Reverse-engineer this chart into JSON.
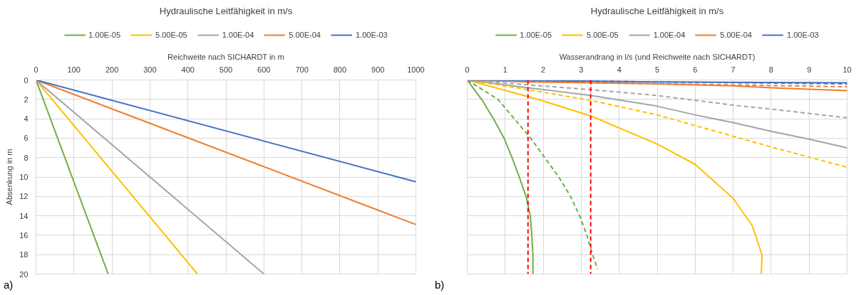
{
  "chart_data": [
    {
      "type": "line",
      "legend_title": "Hydraulische Leitfähigkeit in m/s",
      "xlabel": "Reichweite nach SICHARDT in m",
      "ylabel": "Absenkung in m",
      "xlim": [
        0,
        1000
      ],
      "xticks": [
        0,
        100,
        200,
        300,
        400,
        500,
        600,
        700,
        800,
        900,
        1000
      ],
      "ylim": [
        20,
        0
      ],
      "yticks": [
        0,
        2,
        4,
        6,
        8,
        10,
        12,
        14,
        16,
        18,
        20
      ],
      "grid": true,
      "legend": "top",
      "line_style": "solid",
      "annotations": [
        "a)"
      ],
      "series": [
        {
          "name": "1.00E-05",
          "color": "#70ad47",
          "x": [
            0,
            190
          ],
          "values": [
            0,
            20
          ]
        },
        {
          "name": "5.00E-05",
          "color": "#ffc000",
          "x": [
            0,
            425
          ],
          "values": [
            0,
            20
          ]
        },
        {
          "name": "1.00E-04",
          "color": "#a5a5a5",
          "x": [
            0,
            600
          ],
          "values": [
            0,
            20
          ]
        },
        {
          "name": "5.00E-04",
          "color": "#ed7d31",
          "x": [
            0,
            1000
          ],
          "values": [
            0,
            14.9
          ]
        },
        {
          "name": "1.00E-03",
          "color": "#4472c4",
          "x": [
            0,
            1000
          ],
          "values": [
            0,
            10.5
          ]
        }
      ]
    },
    {
      "type": "line",
      "legend_title": "Hydraulische Leitfähigkeit in m/s",
      "xlabel": "Wasserandrang in l/s (und Reichweite nach SICHARDT)",
      "xlim": [
        0,
        10
      ],
      "xticks": [
        0,
        1,
        2,
        3,
        4,
        5,
        6,
        7,
        8,
        9,
        10
      ],
      "ylim": [
        20,
        0
      ],
      "yticks": [
        {
          "value": 0,
          "label": null
        },
        {
          "value": 2,
          "label": null
        },
        {
          "value": 4,
          "label": null
        },
        {
          "value": 6,
          "label": null
        },
        {
          "value": 8,
          "label": null
        },
        {
          "value": 10,
          "label": null
        },
        {
          "value": 12,
          "label": null
        },
        {
          "value": 14,
          "label": null
        },
        {
          "value": 16,
          "label": null
        },
        {
          "value": 18,
          "label": null
        },
        {
          "value": 20,
          "label": null
        }
      ],
      "tick_labels": "x",
      "grid": true,
      "legend": "top",
      "line_style": "solid",
      "annotations": [
        "b)"
      ],
      "ref_lines": [
        {
          "axis": "x",
          "value": 1.6,
          "label": null,
          "color": "#ff0000",
          "line_style": "dashed"
        },
        {
          "axis": "x",
          "value": 3.25,
          "label": null,
          "color": "#ff0000",
          "line_style": "dashed"
        }
      ],
      "series": [
        {
          "name": "1.00E-05",
          "color": "#70ad47",
          "x": [
            0,
            0.38,
            0.69,
            0.97,
            1.18,
            1.37,
            1.55,
            1.66,
            1.7,
            1.73,
            1.73
          ],
          "values": [
            0,
            2,
            4,
            6,
            8,
            10,
            12,
            14,
            16,
            18,
            20
          ]
        },
        {
          "name": "5.00E-05",
          "color": "#ffc000",
          "x": [
            0,
            1.86,
            3.25,
            5,
            6,
            7,
            7.5,
            7.76,
            7.74
          ],
          "values": [
            0,
            2,
            3.7,
            6.6,
            8.7,
            12.2,
            15,
            18,
            20
          ]
        },
        {
          "name": "1.00E-04",
          "color": "#a5a5a5",
          "x": [
            0,
            1.6,
            3.25,
            5,
            6,
            7,
            8,
            9,
            10
          ],
          "values": [
            0,
            0.8,
            1.6,
            2.7,
            3.6,
            4.4,
            5.3,
            6.1,
            7.0
          ]
        },
        {
          "name": "5.00E-04",
          "color": "#ed7d31",
          "x": [
            0,
            1.6,
            3.25,
            5,
            7,
            8,
            10
          ],
          "values": [
            0,
            0.2,
            0.3,
            0.4,
            0.6,
            0.8,
            1.1
          ]
        },
        {
          "name": "1.00E-03",
          "color": "#4472c4",
          "x": [
            0,
            5,
            10
          ],
          "values": [
            0,
            0.2,
            0.3
          ]
        },
        {
          "color": "#70ad47",
          "line_style": "dashed",
          "x": [
            0,
            0.81,
            1.24,
            1.67,
            2.04,
            2.41,
            2.72,
            2.96,
            3.15,
            3.3,
            3.43
          ],
          "values": [
            0,
            2,
            4,
            6,
            8,
            10,
            12,
            14,
            16,
            18,
            19.5
          ]
        },
        {
          "color": "#ffc000",
          "line_style": "dashed",
          "x": [
            0,
            1.6,
            3.25,
            5,
            6,
            7,
            8,
            10
          ],
          "values": [
            0,
            1.0,
            2.1,
            3.6,
            4.7,
            5.8,
            6.9,
            9.0
          ]
        },
        {
          "color": "#a5a5a5",
          "line_style": "dashed",
          "x": [
            0,
            1.6,
            3.25,
            5,
            6,
            7,
            8,
            10
          ],
          "values": [
            0,
            0.5,
            1.0,
            1.6,
            2.1,
            2.6,
            3.0,
            3.9
          ]
        },
        {
          "color": "#ed7d31",
          "line_style": "dashed",
          "x": [
            0,
            5,
            10
          ],
          "values": [
            0,
            0.4,
            0.7
          ]
        },
        {
          "color": "#4472c4",
          "line_style": "dashed",
          "x": [
            0,
            5,
            10
          ],
          "values": [
            0,
            0.2,
            0.4
          ]
        }
      ]
    }
  ]
}
